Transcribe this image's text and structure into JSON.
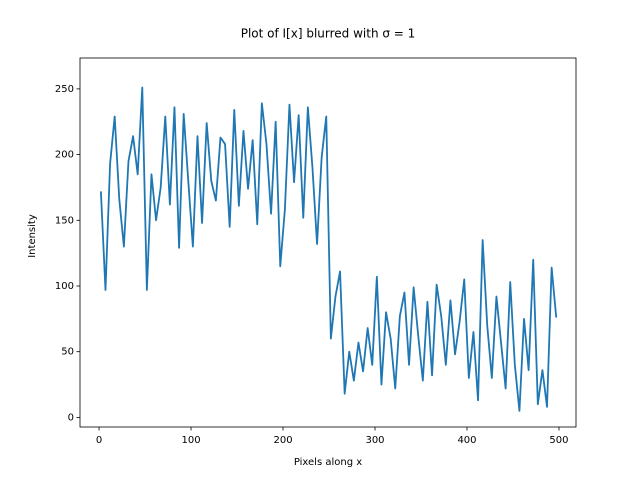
{
  "chart_data": {
    "type": "line",
    "title": "Plot of I[x] blurred with σ = 1",
    "x_label": "Pixels along x",
    "y_label": "Intensity",
    "x": [
      2,
      7,
      12,
      17,
      22,
      27,
      32,
      37,
      42,
      47,
      52,
      57,
      62,
      67,
      72,
      77,
      82,
      87,
      92,
      97,
      102,
      107,
      112,
      117,
      122,
      127,
      132,
      137,
      142,
      147,
      152,
      157,
      162,
      167,
      172,
      177,
      182,
      187,
      192,
      197,
      202,
      207,
      212,
      217,
      222,
      227,
      232,
      237,
      242,
      247,
      252,
      257,
      262,
      267,
      272,
      277,
      282,
      287,
      292,
      297,
      302,
      307,
      312,
      317,
      322,
      327,
      332,
      337,
      342,
      347,
      352,
      357,
      362,
      367,
      372,
      377,
      382,
      387,
      392,
      397,
      402,
      407,
      412,
      417,
      422,
      427,
      432,
      437,
      442,
      447,
      452,
      457,
      462,
      467,
      472,
      477,
      482,
      487,
      492,
      497
    ],
    "series": [
      {
        "name": "I[x]",
        "color": "#1f77b4",
        "values": [
          172,
          97,
          193,
          229,
          166,
          130,
          195,
          214,
          185,
          251,
          97,
          185,
          150,
          175,
          229,
          162,
          236,
          129,
          231,
          180,
          130,
          214,
          148,
          224,
          180,
          165,
          213,
          208,
          145,
          234,
          161,
          218,
          174,
          211,
          147,
          239,
          208,
          155,
          225,
          115,
          158,
          238,
          179,
          230,
          152,
          236,
          190,
          132,
          198,
          229,
          60,
          92,
          111,
          18,
          50,
          28,
          57,
          35,
          68,
          40,
          107,
          25,
          80,
          60,
          22,
          77,
          95,
          40,
          99,
          62,
          28,
          88,
          32,
          101,
          77,
          40,
          89,
          48,
          73,
          105,
          30,
          65,
          13,
          135,
          70,
          30,
          92,
          57,
          22,
          103,
          40,
          5,
          75,
          36,
          120,
          10,
          36,
          8,
          114,
          76
        ]
      }
    ],
    "xlim": [
      -20.7,
      518.5
    ],
    "ylim": [
      -7.3,
      273.5
    ],
    "xticks": [
      0,
      100,
      200,
      300,
      400,
      500
    ],
    "yticks": [
      0,
      50,
      100,
      150,
      200,
      250
    ]
  }
}
